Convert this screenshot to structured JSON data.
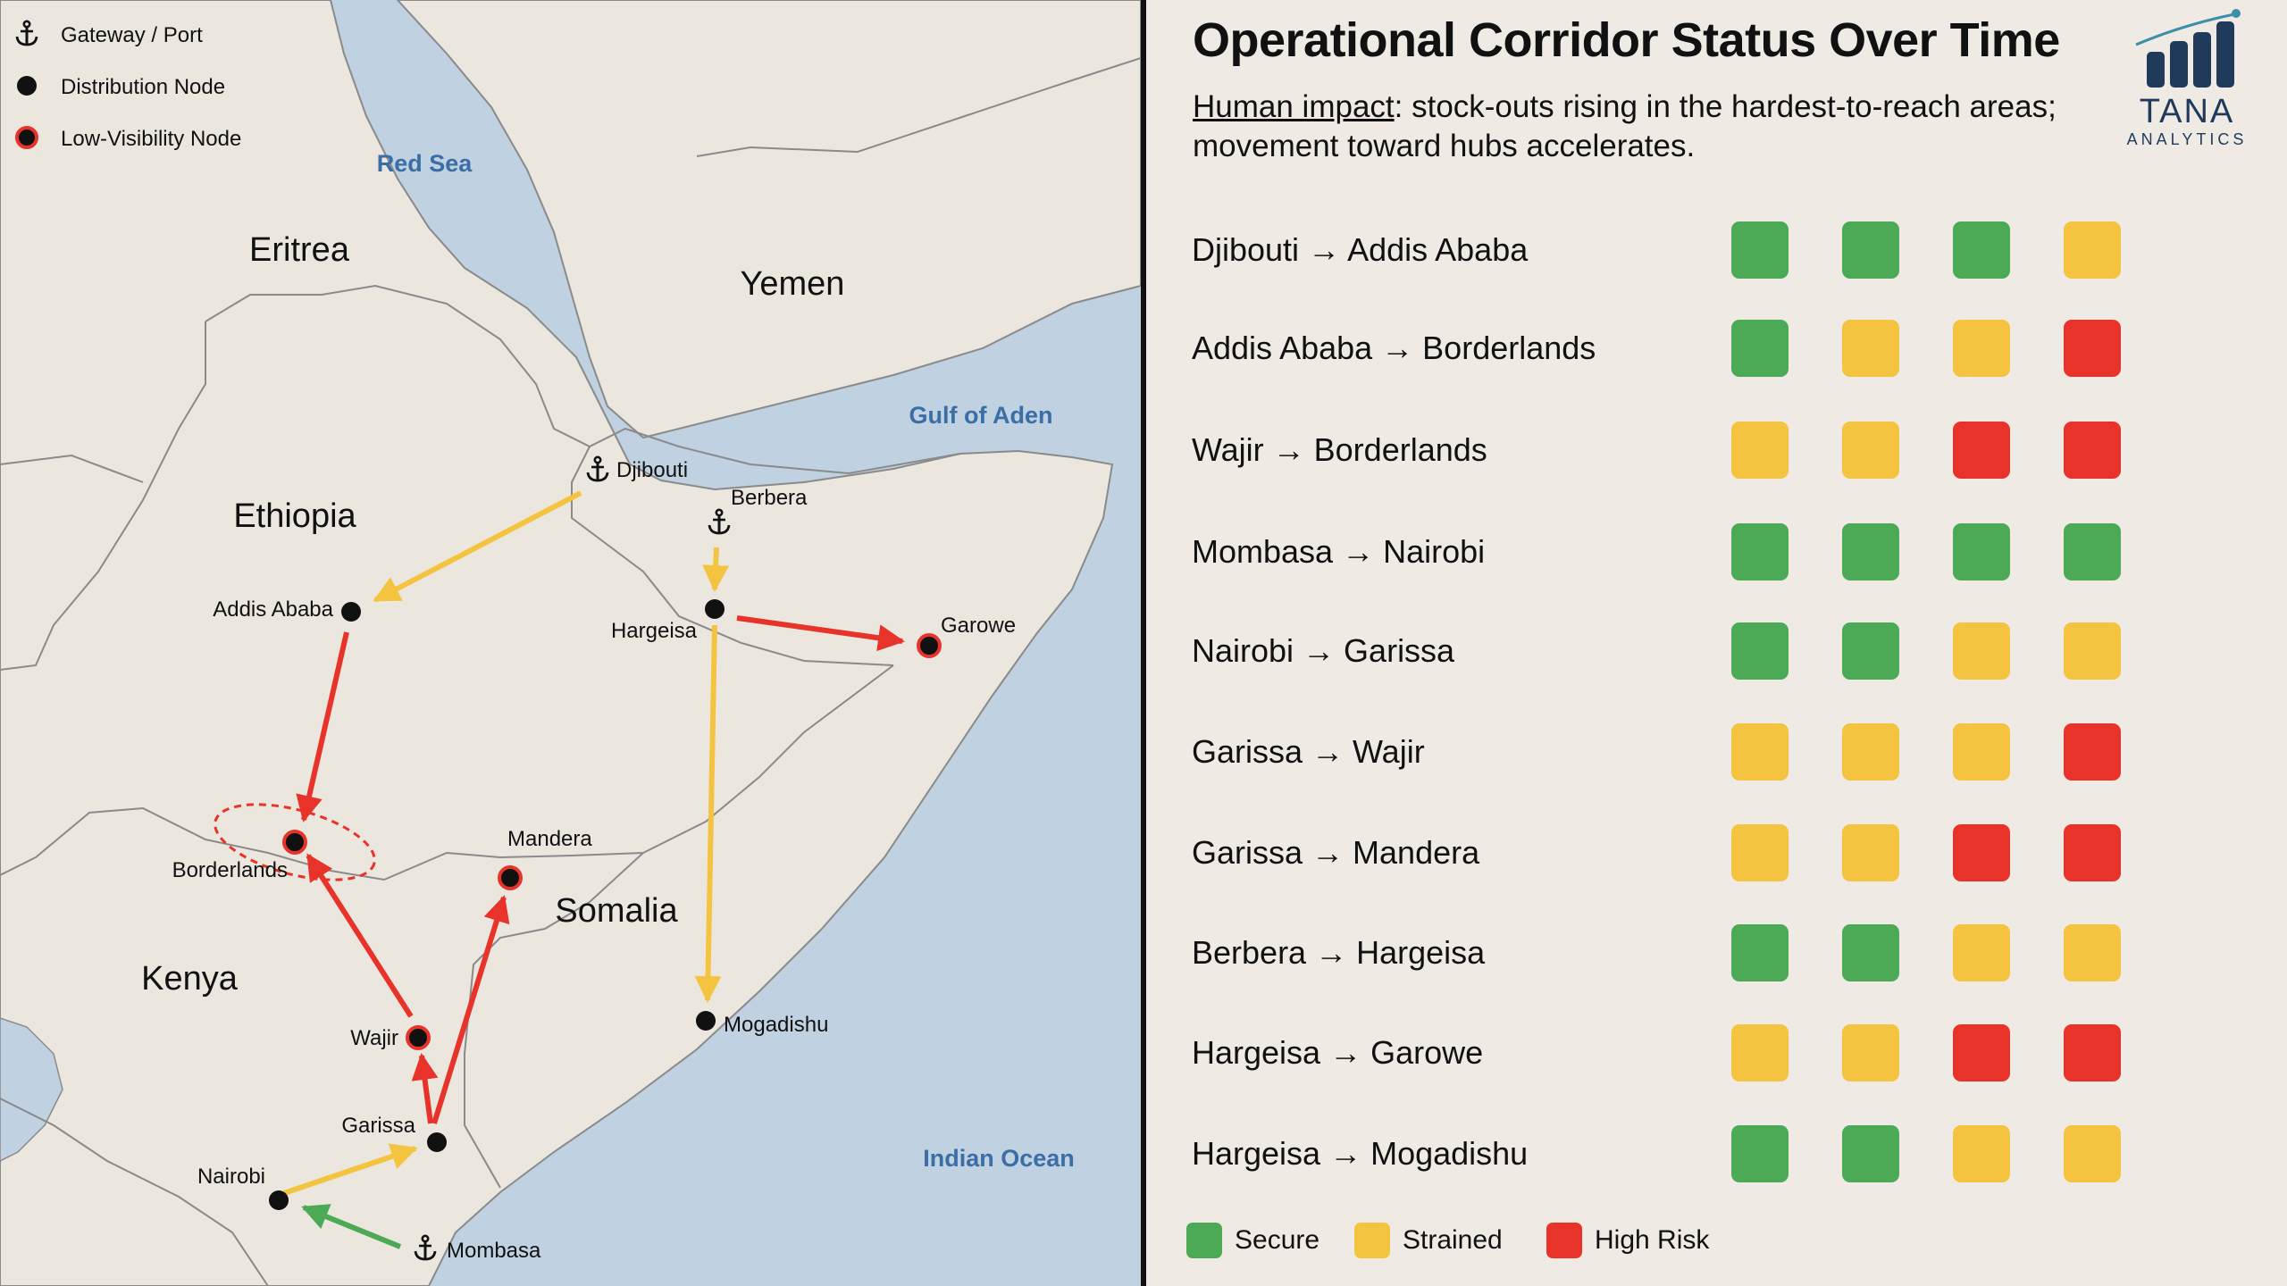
{
  "map": {
    "legend": [
      {
        "icon": "anchor-icon",
        "label": "Gateway / Port"
      },
      {
        "icon": "black-dot-icon",
        "label": "Distribution Node"
      },
      {
        "icon": "red-ring-dot-icon",
        "label": "Low-Visibility Node"
      }
    ],
    "countries": [
      "Eritrea",
      "Yemen",
      "Ethiopia",
      "Somalia",
      "Kenya"
    ],
    "water": [
      "Red Sea",
      "Gulf of Aden",
      "Indian Ocean"
    ],
    "nodes": {
      "djibouti": "Djibouti",
      "berbera": "Berbera",
      "mombasa": "Mombasa",
      "addis": "Addis Ababa",
      "hargeisa": "Hargeisa",
      "garowe": "Garowe",
      "borderlands": "Borderlands",
      "mandera": "Mandera",
      "mogadishu": "Mogadishu",
      "wajir": "Wajir",
      "garissa": "Garissa",
      "nairobi": "Nairobi"
    }
  },
  "panel": {
    "title": "Operational Corridor Status Over Time",
    "subtitle_highlight": "Human impact",
    "subtitle_rest": ": stock-outs rising in the hardest-to-reach areas; movement toward hubs accelerates.",
    "logo_name": "TANA",
    "logo_sub": "ANALYTICS"
  },
  "corridors": [
    {
      "label": "Djibouti → Addis Ababa",
      "status": [
        "secure",
        "secure",
        "secure",
        "strained"
      ]
    },
    {
      "label": "Addis Ababa → Borderlands",
      "status": [
        "secure",
        "strained",
        "strained",
        "high"
      ]
    },
    {
      "label": "Wajir → Borderlands",
      "status": [
        "strained",
        "strained",
        "high",
        "high"
      ]
    },
    {
      "label": "Mombasa → Nairobi",
      "status": [
        "secure",
        "secure",
        "secure",
        "secure"
      ]
    },
    {
      "label": "Nairobi → Garissa",
      "status": [
        "secure",
        "secure",
        "strained",
        "strained"
      ]
    },
    {
      "label": "Garissa → Wajir",
      "status": [
        "strained",
        "strained",
        "strained",
        "high"
      ]
    },
    {
      "label": "Garissa → Mandera",
      "status": [
        "strained",
        "strained",
        "high",
        "high"
      ]
    },
    {
      "label": "Berbera → Hargeisa",
      "status": [
        "secure",
        "secure",
        "strained",
        "strained"
      ]
    },
    {
      "label": "Hargeisa → Garowe",
      "status": [
        "strained",
        "strained",
        "high",
        "high"
      ]
    },
    {
      "label": "Hargeisa → Mogadishu",
      "status": [
        "secure",
        "secure",
        "strained",
        "strained"
      ]
    }
  ],
  "legend": [
    {
      "key": "secure",
      "label": "Secure"
    },
    {
      "key": "strained",
      "label": "Strained"
    },
    {
      "key": "high",
      "label": "High Risk"
    }
  ],
  "colors": {
    "secure": "#4caa57",
    "strained": "#f4c441",
    "high": "#e8332a",
    "water": "#c0d1e2",
    "land": "#ebe7df",
    "water_label": "#3a6ea5",
    "logo": "#1f3a5a"
  }
}
